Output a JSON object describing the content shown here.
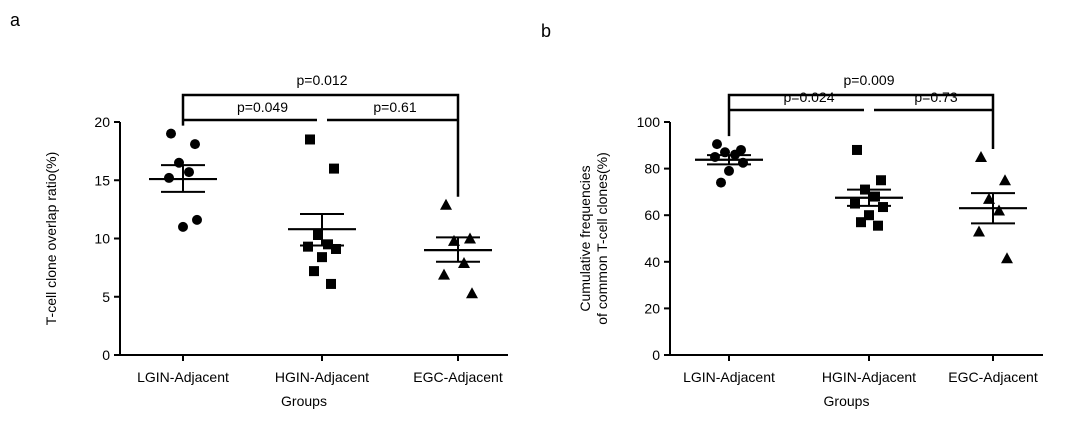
{
  "chart_data": [
    {
      "panel_label": "a",
      "type": "scatter",
      "xlabel": "Groups",
      "ylabel": "T-cell clone overlap ratio(%)",
      "ylim": [
        0,
        20
      ],
      "yticks": [
        "0",
        "5",
        "10",
        "15",
        "20"
      ],
      "categories": [
        "LGIN-Adjacent",
        "HGIN-Adjacent",
        "EGC-Adjacent"
      ],
      "series": [
        {
          "marker": "circle",
          "values": [
            19.0,
            18.1,
            16.5,
            15.7,
            15.2,
            11.6,
            11.0
          ],
          "mean": 15.1,
          "sem_low": 14.0,
          "sem_high": 16.3
        },
        {
          "marker": "square",
          "values": [
            18.5,
            16.0,
            10.3,
            9.5,
            9.3,
            9.1,
            8.4,
            7.2,
            6.1
          ],
          "mean": 10.8,
          "sem_low": 9.4,
          "sem_high": 12.1
        },
        {
          "marker": "triangle",
          "values": [
            12.9,
            10.0,
            9.8,
            7.9,
            6.9,
            5.3
          ],
          "mean": 9.0,
          "sem_low": 8.0,
          "sem_high": 10.1
        }
      ],
      "brackets": [
        {
          "from": 0,
          "to": 2,
          "label": "p=0.012"
        },
        {
          "from": 0,
          "to": 1,
          "label": "p=0.049"
        },
        {
          "from": 1,
          "to": 2,
          "label": "p=0.61"
        }
      ]
    },
    {
      "panel_label": "b",
      "type": "scatter",
      "xlabel": "Groups",
      "ylabel": [
        "Cumulative frequencies",
        "of common T-cell clones(%)"
      ],
      "ylim": [
        0,
        100
      ],
      "yticks": [
        "0",
        "20",
        "40",
        "60",
        "80",
        "100"
      ],
      "categories": [
        "LGIN-Adjacent",
        "HGIN-Adjacent",
        "EGC-Adjacent"
      ],
      "series": [
        {
          "marker": "circle",
          "values": [
            90.5,
            88.0,
            87.0,
            86.0,
            85.0,
            82.5,
            79.0,
            74.0
          ],
          "mean": 83.8,
          "sem_low": 81.8,
          "sem_high": 85.8
        },
        {
          "marker": "square",
          "values": [
            88.0,
            75.0,
            71.0,
            68.0,
            65.0,
            63.5,
            60.0,
            57.0,
            55.5
          ],
          "mean": 67.5,
          "sem_low": 64.0,
          "sem_high": 71.0
        },
        {
          "marker": "triangle",
          "values": [
            85.0,
            75.0,
            67.0,
            62.0,
            53.0,
            41.5
          ],
          "mean": 63.0,
          "sem_low": 56.5,
          "sem_high": 69.5
        }
      ],
      "brackets": [
        {
          "from": 0,
          "to": 2,
          "label": "p=0.009"
        },
        {
          "from": 0,
          "to": 1,
          "label": "p=0.024"
        },
        {
          "from": 1,
          "to": 2,
          "label": "p=0.73"
        }
      ]
    }
  ]
}
